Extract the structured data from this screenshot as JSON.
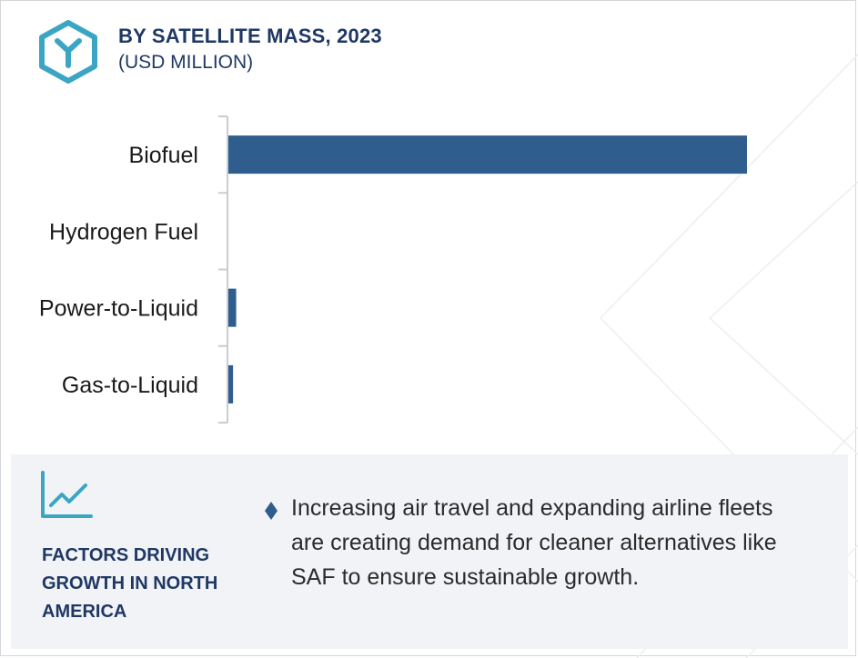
{
  "header": {
    "title": "BY SATELLITE MASS, 2023",
    "subtitle": "(USD MILLION)",
    "logo_icon": "hexagon-y-logo-icon",
    "accent_color": "#3aa6c4",
    "title_color": "#1f3864"
  },
  "chart_data": {
    "type": "bar",
    "orientation": "horizontal",
    "title": "BY SATELLITE MASS, 2023",
    "subtitle": "(USD MILLION)",
    "categories": [
      "Biofuel",
      "Hydrogen Fuel",
      "Power-to-Liquid",
      "Gas-to-Liquid"
    ],
    "values": [
      100,
      0,
      1.5,
      0.9
    ],
    "bar_color": "#2e5d8e",
    "grid": false,
    "legend": "none"
  },
  "factors": {
    "icon": "trend-line-icon",
    "title": "FACTORS DRIVING GROWTH IN NORTH AMERICA",
    "bullet_icon": "diamond-bullet-icon",
    "bullets": [
      "Increasing air travel and expanding airline fleets are creating demand for cleaner alternatives like SAF to ensure sustainable growth."
    ]
  }
}
